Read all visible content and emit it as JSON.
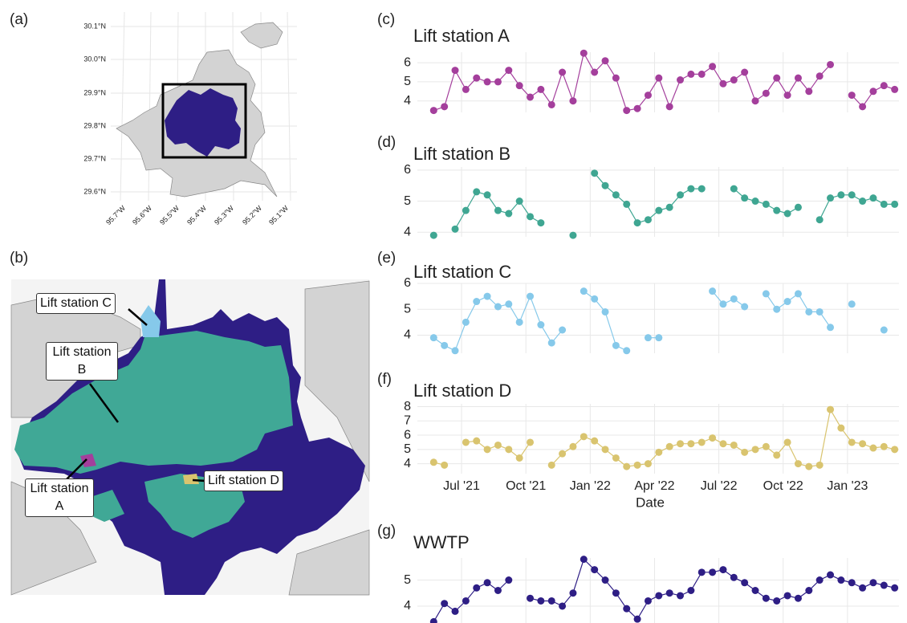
{
  "panel_labels": [
    "(a)",
    "(b)",
    "(c)",
    "(d)",
    "(e)",
    "(f)",
    "(g)"
  ],
  "map_a": {
    "lat_labels": [
      "30.1°N",
      "30.0°N",
      "29.9°N",
      "29.8°N",
      "29.7°N",
      "29.6°N"
    ],
    "lon_labels": [
      "95.7°W",
      "95.6°W",
      "95.5°W",
      "95.4°W",
      "95.3°W",
      "95.2°W",
      "95.1°W"
    ]
  },
  "map_b": {
    "labels": [
      "Lift station C",
      "Lift station B",
      "Lift station A",
      "Lift station D"
    ]
  },
  "chart_data": [
    {
      "type": "line",
      "title": "Lift station A",
      "x": [
        4.7,
        5.2,
        5.7,
        6.2,
        6.7,
        7.2,
        7.7,
        8.2,
        8.7,
        9.2,
        9.7,
        10.2,
        10.7,
        11.2,
        11.7,
        12.2,
        12.7,
        13.2,
        13.7,
        14.2,
        14.7,
        15.2,
        15.7,
        16.2,
        16.7,
        17.2,
        17.7,
        18.2,
        18.7,
        19.2,
        19.7,
        20.2,
        20.7,
        21.2,
        21.7,
        22.2,
        22.7,
        23.2,
        23.7,
        24.2,
        24.7,
        25.2,
        25.7,
        26.2
      ],
      "series": [
        {
          "name": "Lift station A",
          "color": "#a43f9c",
          "values": [
            3.5,
            3.7,
            5.6,
            4.6,
            5.2,
            5.0,
            5.0,
            5.6,
            4.8,
            4.2,
            4.6,
            3.8,
            5.5,
            4.0,
            6.5,
            5.5,
            6.1,
            5.2,
            3.5,
            3.6,
            4.3,
            5.2,
            3.7,
            5.1,
            5.4,
            5.4,
            5.8,
            4.9,
            5.1,
            5.5,
            4.0,
            4.4,
            5.2,
            4.3,
            5.2,
            4.5,
            5.3,
            5.9,
            null,
            4.3,
            3.7,
            4.5,
            4.8,
            4.6
          ]
        }
      ],
      "xlim": [
        3.94,
        26.4
      ],
      "ylim": [
        3.4,
        6.55
      ],
      "xticks": [
        6,
        9,
        12,
        15,
        18,
        21,
        24
      ],
      "yticks": [
        4,
        5,
        6
      ],
      "grid": true
    },
    {
      "type": "line",
      "title": "Lift station B",
      "x": [
        4.7,
        5.2,
        5.7,
        6.2,
        6.7,
        7.2,
        7.7,
        8.2,
        8.7,
        9.2,
        9.7,
        10.2,
        10.7,
        11.2,
        11.7,
        12.2,
        12.7,
        13.2,
        13.7,
        14.2,
        14.7,
        15.2,
        15.7,
        16.2,
        16.7,
        17.2,
        17.7,
        18.2,
        18.7,
        19.2,
        19.7,
        20.2,
        20.7,
        21.2,
        21.7,
        22.2,
        22.7,
        23.2,
        23.7,
        24.2,
        24.7,
        25.2,
        25.7,
        26.2
      ],
      "series": [
        {
          "name": "Lift station B",
          "color": "#3fa692",
          "values": [
            3.9,
            null,
            4.1,
            4.7,
            5.3,
            5.2,
            4.7,
            4.6,
            5.0,
            4.5,
            4.3,
            null,
            null,
            3.9,
            null,
            5.9,
            5.5,
            5.2,
            4.9,
            4.3,
            4.4,
            4.7,
            4.8,
            5.2,
            5.4,
            5.4,
            null,
            null,
            5.4,
            5.1,
            5.0,
            4.9,
            4.7,
            4.6,
            4.8,
            null,
            4.4,
            5.1,
            5.2,
            5.2,
            5.0,
            5.1,
            4.9,
            4.9
          ]
        }
      ],
      "xlim": [
        3.94,
        26.4
      ],
      "ylim": [
        3.85,
        6.1
      ],
      "xticks": [
        6,
        9,
        12,
        15,
        18,
        21,
        24
      ],
      "yticks": [
        4,
        5,
        6
      ],
      "grid": true
    },
    {
      "type": "line",
      "title": "Lift station C",
      "x": [
        4.7,
        5.2,
        5.7,
        6.2,
        6.7,
        7.2,
        7.7,
        8.2,
        8.7,
        9.2,
        9.7,
        10.2,
        10.7,
        11.2,
        11.7,
        12.2,
        12.7,
        13.2,
        13.7,
        14.2,
        14.7,
        15.2,
        15.7,
        16.2,
        16.7,
        17.2,
        17.7,
        18.2,
        18.7,
        19.2,
        19.7,
        20.2,
        20.7,
        21.2,
        21.7,
        22.2,
        22.7,
        23.2,
        23.7,
        24.2,
        24.7,
        25.2,
        25.7,
        26.2
      ],
      "series": [
        {
          "name": "Lift station C",
          "color": "#86c9ea",
          "values": [
            3.9,
            3.6,
            3.4,
            4.5,
            5.3,
            5.5,
            5.1,
            5.2,
            4.5,
            5.5,
            4.4,
            3.7,
            4.2,
            null,
            5.7,
            5.4,
            4.9,
            3.6,
            3.4,
            null,
            3.9,
            3.9,
            null,
            null,
            null,
            null,
            5.7,
            5.2,
            5.4,
            5.1,
            null,
            5.6,
            5.0,
            5.3,
            5.6,
            4.9,
            4.9,
            4.3,
            null,
            5.2,
            null,
            null,
            4.2,
            null
          ]
        }
      ],
      "xlim": [
        3.94,
        26.4
      ],
      "ylim": [
        3.3,
        6.0
      ],
      "xticks": [
        6,
        9,
        12,
        15,
        18,
        21,
        24
      ],
      "yticks": [
        4,
        5,
        6
      ],
      "grid": true
    },
    {
      "type": "line",
      "title": "Lift station D",
      "xlabel": "Date",
      "x": [
        4.7,
        5.2,
        5.7,
        6.2,
        6.7,
        7.2,
        7.7,
        8.2,
        8.7,
        9.2,
        9.7,
        10.2,
        10.7,
        11.2,
        11.7,
        12.2,
        12.7,
        13.2,
        13.7,
        14.2,
        14.7,
        15.2,
        15.7,
        16.2,
        16.7,
        17.2,
        17.7,
        18.2,
        18.7,
        19.2,
        19.7,
        20.2,
        20.7,
        21.2,
        21.7,
        22.2,
        22.7,
        23.2,
        23.7,
        24.2,
        24.7,
        25.2,
        25.7,
        26.2
      ],
      "series": [
        {
          "name": "Lift station D",
          "color": "#d9c46f",
          "values": [
            4.1,
            3.9,
            null,
            5.5,
            5.6,
            5.0,
            5.3,
            5.0,
            4.4,
            5.5,
            null,
            3.9,
            4.7,
            5.2,
            5.9,
            5.6,
            5.0,
            4.4,
            3.8,
            3.9,
            4.0,
            4.8,
            5.2,
            5.4,
            5.4,
            5.5,
            5.8,
            5.4,
            5.3,
            4.8,
            5.0,
            5.2,
            4.6,
            5.5,
            4.0,
            3.8,
            3.9,
            7.8,
            6.5,
            5.5,
            5.4,
            5.1,
            5.2,
            5.0
          ]
        }
      ],
      "xlim": [
        3.94,
        26.4
      ],
      "ylim": [
        3.3,
        8.2
      ],
      "xticks": [
        {
          "value": 6,
          "label": "Jul '21"
        },
        {
          "value": 9,
          "label": "Oct '21"
        },
        {
          "value": 12,
          "label": "Jan '22"
        },
        {
          "value": 15,
          "label": "Apr '22"
        },
        {
          "value": 18,
          "label": "Jul '22"
        },
        {
          "value": 21,
          "label": "Oct '22"
        },
        {
          "value": 24,
          "label": "Jan '23"
        }
      ],
      "yticks": [
        4,
        5,
        6,
        7,
        8
      ],
      "grid": true
    },
    {
      "type": "line",
      "title": "WWTP",
      "x": [
        4.7,
        5.2,
        5.7,
        6.2,
        6.7,
        7.2,
        7.7,
        8.2,
        8.7,
        9.2,
        9.7,
        10.2,
        10.7,
        11.2,
        11.7,
        12.2,
        12.7,
        13.2,
        13.7,
        14.2,
        14.7,
        15.2,
        15.7,
        16.2,
        16.7,
        17.2,
        17.7,
        18.2,
        18.7,
        19.2,
        19.7,
        20.2,
        20.7,
        21.2,
        21.7,
        22.2,
        22.7,
        23.2,
        23.7,
        24.2,
        24.7,
        25.2,
        25.7,
        26.2
      ],
      "series": [
        {
          "name": "WWTP",
          "color": "#2e1e85",
          "values": [
            3.4,
            4.1,
            3.8,
            4.2,
            4.7,
            4.9,
            4.6,
            5.0,
            null,
            4.3,
            4.2,
            4.2,
            4.0,
            4.5,
            5.8,
            5.4,
            5.0,
            4.5,
            3.9,
            3.5,
            4.2,
            4.4,
            4.5,
            4.4,
            4.6,
            5.3,
            5.3,
            5.4,
            5.1,
            4.9,
            4.6,
            4.3,
            4.2,
            4.4,
            4.3,
            4.6,
            5.0,
            5.2,
            5.0,
            4.9,
            4.7,
            4.9,
            4.8,
            4.7
          ]
        }
      ],
      "xlim": [
        3.94,
        26.4
      ],
      "ylim": [
        3.35,
        5.85
      ],
      "xticks": [
        6,
        9,
        12,
        15,
        18,
        21,
        24
      ],
      "yticks": [
        4,
        5
      ],
      "grid": true
    }
  ]
}
